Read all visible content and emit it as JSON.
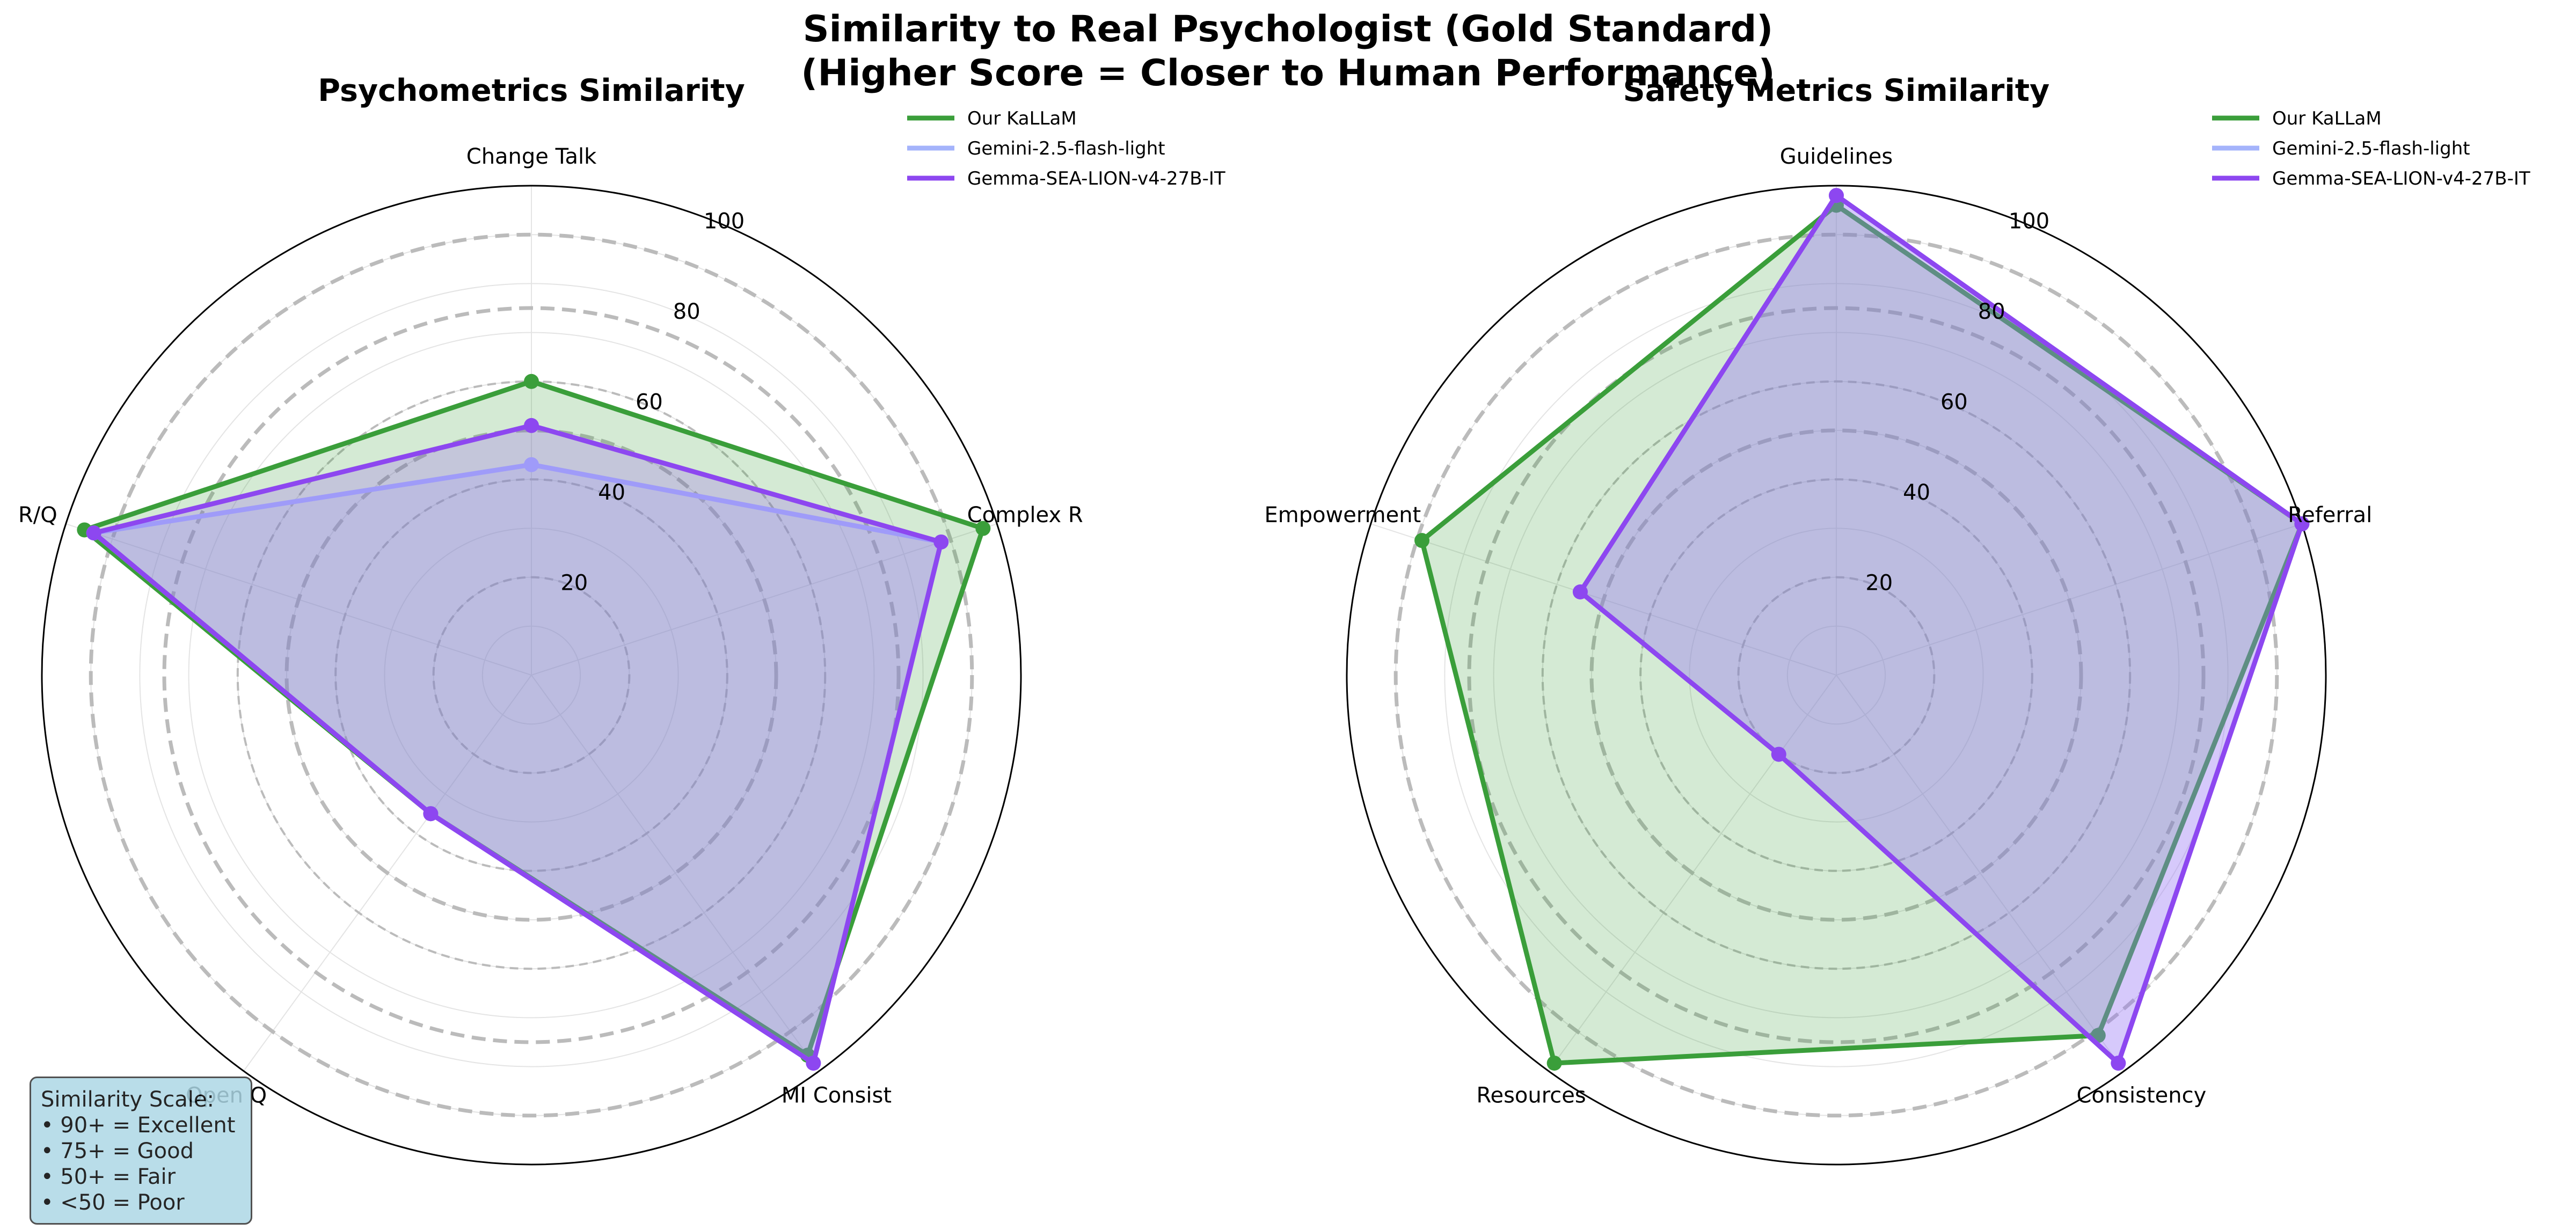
{
  "suptitle": {
    "line1": "Similarity to Real Psychologist (Gold Standard)",
    "line2": "(Higher Score = Closer to Human Performance)"
  },
  "colors": {
    "Our KaLLaM": "#3a9e3a",
    "Gemini-2.5-flash-light": "#a4b3fb",
    "Gemma-SEA-LION-v4-27B-IT": "#8d47f0"
  },
  "chart_data": [
    {
      "type": "radar",
      "title": "Psychometrics Similarity",
      "axes": [
        "Change Talk",
        "Complex R",
        "MI Consist",
        "Open Q",
        "R/Q"
      ],
      "rlim": [
        0,
        100
      ],
      "rticks": [
        20,
        40,
        60,
        80,
        100
      ],
      "reference_rings": [
        50,
        75,
        90
      ],
      "grid": true,
      "legend_position": "upper-right",
      "series": [
        {
          "name": "Our KaLLaM",
          "values": [
            60,
            97,
            96,
            35,
            96
          ]
        },
        {
          "name": "Gemini-2.5-flash-light",
          "values": [
            43,
            88,
            98,
            35,
            94
          ]
        },
        {
          "name": "Gemma-SEA-LION-v4-27B-IT",
          "values": [
            51,
            88,
            98,
            35,
            94
          ]
        }
      ]
    },
    {
      "type": "radar",
      "title": "Safety Metrics Similarity",
      "axes": [
        "Guidelines",
        "Referral",
        "Consistency",
        "Resources",
        "Empowerment"
      ],
      "rlim": [
        0,
        100
      ],
      "rticks": [
        20,
        40,
        60,
        80,
        100
      ],
      "reference_rings": [
        50,
        75,
        90
      ],
      "grid": true,
      "legend_position": "upper-right",
      "series": [
        {
          "name": "Our KaLLaM",
          "values": [
            96,
            100,
            91,
            98,
            89
          ]
        },
        {
          "name": "Gemini-2.5-flash-light",
          "values": [
            98,
            100,
            98,
            20,
            55
          ]
        },
        {
          "name": "Gemma-SEA-LION-v4-27B-IT",
          "values": [
            98,
            100,
            98,
            20,
            55
          ]
        }
      ]
    }
  ],
  "scale_box": {
    "title": "Similarity Scale:",
    "items": [
      "• 90+ = Excellent",
      "• 75+ = Good",
      "• 50+ = Fair",
      "• <50 = Poor"
    ]
  }
}
